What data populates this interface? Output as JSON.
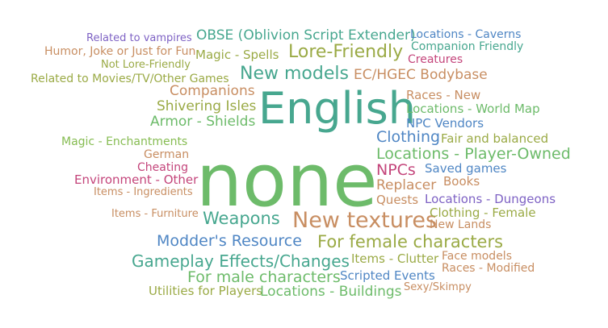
{
  "colors": {
    "green": "#6dbb6a",
    "teal": "#47a78f",
    "olive": "#9aaa45",
    "orange": "#c88e62",
    "blue": "#4f86c4",
    "purple": "#7e62c4",
    "magenta": "#c4457b",
    "lime": "#86bc52"
  },
  "words": [
    "Related to vampires",
    "OBSE (Oblivion Script Extender)",
    "Locations - Caverns",
    "Humor, Joke or Just for Fun",
    "Magic - Spells",
    "Lore-Friendly",
    "Companion Friendly",
    "Not Lore-Friendly",
    "Creatures",
    "Related to Movies/TV/Other Games",
    "New models",
    "EC/HGEC Bodybase",
    "Companions",
    "Races - New",
    "Shivering Isles",
    "English",
    "Locations - World Map",
    "Armor - Shields",
    "NPC Vendors",
    "Clothing",
    "Fair and balanced",
    "Magic - Enchantments",
    "German",
    "Locations - Player-Owned",
    "Cheating",
    "NPCs",
    "Saved games",
    "Environment - Other",
    "none",
    "Books",
    "Items - Ingredients",
    "Replacer",
    "Quests",
    "Locations - Dungeons",
    "Items - Furniture",
    "Weapons",
    "New textures",
    "Clothing - Female",
    "New Lands",
    "Modder's Resource",
    "For female characters",
    "Face models",
    "Gameplay Effects/Changes",
    "Items - Clutter",
    "Races - Modified",
    "For male characters",
    "Scripted Events",
    "Sexy/Skimpy",
    "Utilities for Players",
    "Locations - Buildings"
  ]
}
